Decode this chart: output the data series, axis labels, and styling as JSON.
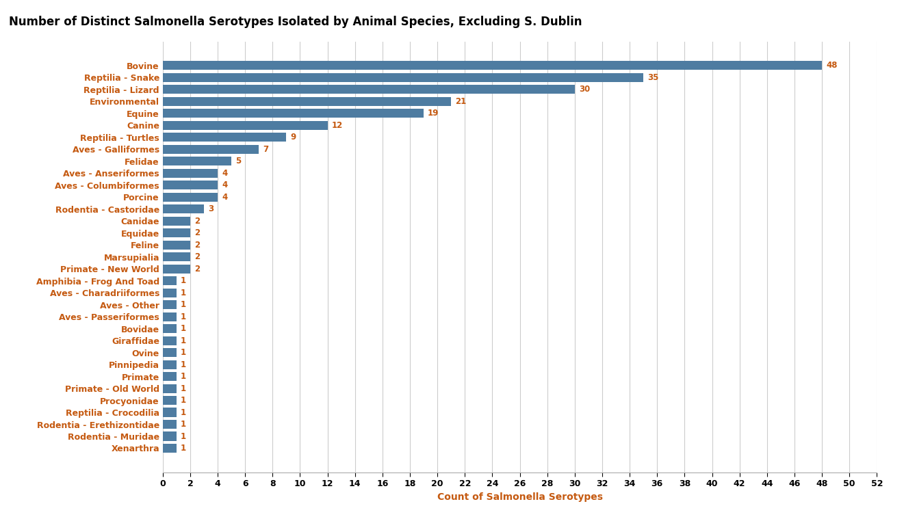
{
  "title": "Number of Distinct Salmonella Serotypes Isolated by Animal Species, Excluding S. Dublin",
  "xlabel": "Count of Salmonella Serotypes",
  "categories": [
    "Bovine",
    "Reptilia - Snake",
    "Reptilia - Lizard",
    "Environmental",
    "Equine",
    "Canine",
    "Reptilia - Turtles",
    "Aves - Galliformes",
    "Felidae",
    "Aves - Anseriformes",
    "Aves - Columbiformes",
    "Porcine",
    "Rodentia - Castoridae",
    "Canidae",
    "Equidae",
    "Feline",
    "Marsupialia",
    "Primate - New World",
    "Amphibia - Frog And Toad",
    "Aves - Charadriiformes",
    "Aves - Other",
    "Aves - Passeriformes",
    "Bovidae",
    "Giraffidae",
    "Ovine",
    "Pinnipedia",
    "Primate",
    "Primate - Old World",
    "Procyonidae",
    "Reptilia - Crocodilia",
    "Rodentia - Erethizontidae",
    "Rodentia - Muridae",
    "Xenarthra"
  ],
  "values": [
    48,
    35,
    30,
    21,
    19,
    12,
    9,
    7,
    5,
    4,
    4,
    4,
    3,
    2,
    2,
    2,
    2,
    2,
    1,
    1,
    1,
    1,
    1,
    1,
    1,
    1,
    1,
    1,
    1,
    1,
    1,
    1,
    1
  ],
  "bar_color": "#4e7ca1",
  "value_color": "#c55a11",
  "title_color": "#000000",
  "label_color": "#c55a11",
  "axis_color": "#000000",
  "background_color": "#ffffff",
  "xlim": [
    0,
    52
  ],
  "xticks": [
    0,
    2,
    4,
    6,
    8,
    10,
    12,
    14,
    16,
    18,
    20,
    22,
    24,
    26,
    28,
    30,
    32,
    34,
    36,
    38,
    40,
    42,
    44,
    46,
    48,
    50,
    52
  ],
  "bar_height": 0.75,
  "title_fontsize": 12,
  "label_fontsize": 9,
  "value_fontsize": 8.5
}
